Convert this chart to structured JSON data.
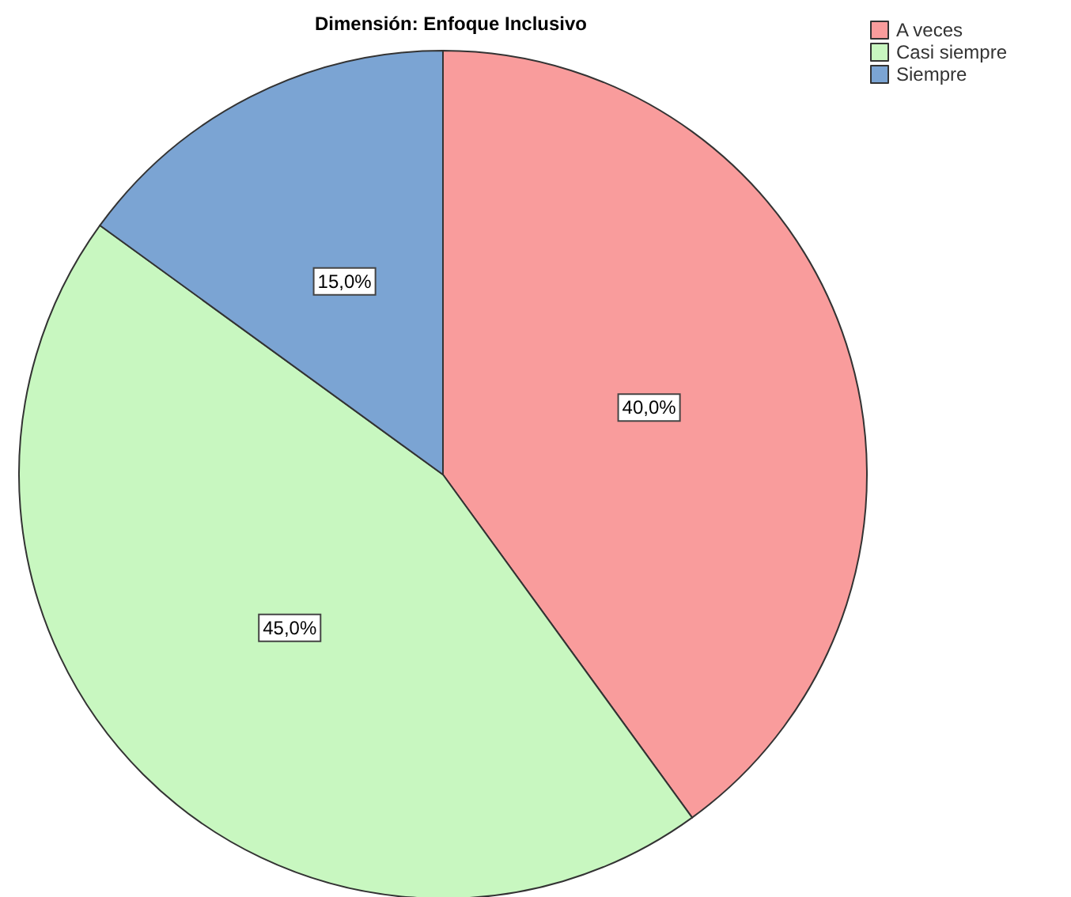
{
  "chart_data": {
    "type": "pie",
    "title": "Dimensión: Enfoque Inclusivo",
    "categories": [
      "A veces",
      "Casi siempre",
      "Siempre"
    ],
    "values": [
      40,
      45,
      15
    ],
    "value_labels": [
      "40,0%",
      "45,0%",
      "15,0%"
    ],
    "colors": [
      "#f99c9c",
      "#c8f7c0",
      "#7ba4d3"
    ],
    "legend": "top right"
  }
}
